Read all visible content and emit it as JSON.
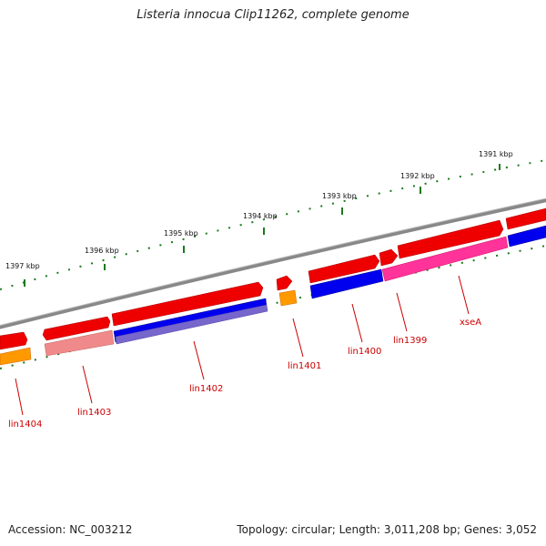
{
  "title": "Listeria innocua Clip11262, complete genome",
  "footer": {
    "accession": "Accession: NC_003212",
    "topology": "Topology: circular; Length: 3,011,208 bp; Genes: 3,052"
  },
  "ticks": [
    {
      "label": "1391 kbp"
    },
    {
      "label": "1392 kbp"
    },
    {
      "label": "1393 kbp"
    },
    {
      "label": "1394 kbp"
    },
    {
      "label": "1395 kbp"
    },
    {
      "label": "1396 kbp"
    },
    {
      "label": "1397 kbp"
    }
  ],
  "genes": [
    {
      "name": "xseA"
    },
    {
      "name": "lin1399"
    },
    {
      "name": "lin1400"
    },
    {
      "name": "lin1401"
    },
    {
      "name": "lin1402"
    },
    {
      "name": "lin1403"
    },
    {
      "name": "lin1404"
    }
  ],
  "colors": {
    "backbone": "#888888",
    "tick": "#1a7a1a",
    "label_text": "#111111",
    "gene_label": "#cc0000",
    "forward_cds": "#ee0000",
    "reverse_cds_blue": "#0000ee",
    "reverse_cds_magenta": "#ff3399",
    "reverse_cds_pink": "#f08a8a",
    "reverse_cds_purple": "#7766cc",
    "orange_feature": "#ff9900"
  }
}
